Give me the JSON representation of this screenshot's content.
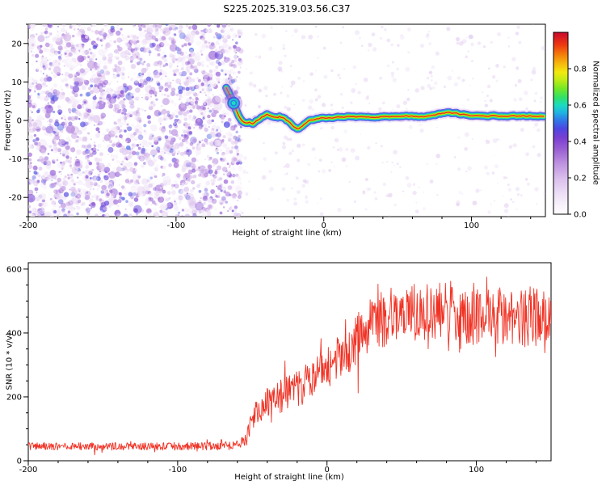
{
  "title": "S225.2025.319.03.56.C37",
  "colors": {
    "background": "#ffffff",
    "axis": "#000000",
    "tick_label": "#000000",
    "snr_line": "#f03224"
  },
  "seed": 319037,
  "colormap": [
    [
      0.0,
      "#fefdff"
    ],
    [
      0.05,
      "#f8f2fb"
    ],
    [
      0.12,
      "#ecdcf5"
    ],
    [
      0.2,
      "#d9bdec"
    ],
    [
      0.28,
      "#bd92e0"
    ],
    [
      0.35,
      "#9c63d4"
    ],
    [
      0.42,
      "#7a3fd2"
    ],
    [
      0.47,
      "#4e46e2"
    ],
    [
      0.52,
      "#2e7ce8"
    ],
    [
      0.56,
      "#1fb6e2"
    ],
    [
      0.6,
      "#1cdcc0"
    ],
    [
      0.64,
      "#2fe06a"
    ],
    [
      0.69,
      "#72e826"
    ],
    [
      0.74,
      "#c3ec14"
    ],
    [
      0.78,
      "#f2ea0e"
    ],
    [
      0.83,
      "#f6b60c"
    ],
    [
      0.88,
      "#f47a0a"
    ],
    [
      0.93,
      "#ee3a10"
    ],
    [
      1.0,
      "#c9082e"
    ]
  ],
  "chart_data": [
    {
      "type": "heatmap",
      "panel": "spectrogram",
      "title": "S225.2025.319.03.56.C37",
      "xlabel": "Height of straight line (km)",
      "ylabel": "Frequency (Hz)",
      "xlim": [
        -200,
        150
      ],
      "ylim": [
        -25,
        25
      ],
      "x_tick_values": [
        -200,
        -100,
        0,
        100
      ],
      "x_tick_labels": [
        "-200",
        "-100",
        "0",
        "100"
      ],
      "x_minor_step": 20,
      "y_tick_values": [
        -20,
        -10,
        0,
        10,
        20
      ],
      "y_tick_labels": [
        "-20",
        "-10",
        "0",
        "10",
        "20"
      ],
      "y_minor_step": 5,
      "grid": false,
      "colorbar": {
        "label": "Normalized spectral amplitude",
        "tick_values": [
          0,
          0.2,
          0.4,
          0.6,
          0.8
        ],
        "tick_labels": [
          "0.0",
          "0.2",
          "0.4",
          "0.6",
          "0.8"
        ],
        "range": [
          0,
          1
        ]
      },
      "noise_field": {
        "x_range_km": [
          -200,
          -56
        ],
        "freq_range_hz": [
          -25,
          25
        ],
        "blob_count": 2600,
        "amplitude_range": [
          0.05,
          0.5
        ]
      },
      "sparse_noise": {
        "x_range_km": [
          -56,
          150
        ],
        "blob_count": 380,
        "amplitude_range": [
          0.03,
          0.12
        ]
      },
      "signal_track_km_hz": [
        [
          -66,
          8.5
        ],
        [
          -64,
          7
        ],
        [
          -62,
          5.5
        ],
        [
          -60,
          3.5
        ],
        [
          -58,
          1.6
        ],
        [
          -56,
          0.4
        ],
        [
          -54,
          -0.4
        ],
        [
          -52,
          -0.8
        ],
        [
          -50,
          -0.5
        ],
        [
          -48,
          -0.9
        ],
        [
          -46,
          -0.3
        ],
        [
          -44,
          0.2
        ],
        [
          -42,
          0.8
        ],
        [
          -40,
          1.3
        ],
        [
          -38,
          1.6
        ],
        [
          -36,
          1.2
        ],
        [
          -34,
          0.8
        ],
        [
          -32,
          0.6
        ],
        [
          -30,
          0.9
        ],
        [
          -28,
          0.7
        ],
        [
          -26,
          0.2
        ],
        [
          -24,
          -0.3
        ],
        [
          -22,
          -0.9
        ],
        [
          -20,
          -1.6
        ],
        [
          -18,
          -2
        ],
        [
          -16,
          -1.8
        ],
        [
          -14,
          -1.2
        ],
        [
          -12,
          -0.6
        ],
        [
          -10,
          -0.2
        ],
        [
          -8,
          0.1
        ],
        [
          -6,
          0.3
        ],
        [
          -4,
          0.4
        ],
        [
          -2,
          0.5
        ],
        [
          0,
          0.5
        ],
        [
          5,
          0.6
        ],
        [
          10,
          0.8
        ],
        [
          15,
          0.9
        ],
        [
          20,
          1
        ],
        [
          25,
          0.9
        ],
        [
          30,
          0.8
        ],
        [
          35,
          0.9
        ],
        [
          40,
          1
        ],
        [
          45,
          1
        ],
        [
          50,
          1.1
        ],
        [
          55,
          1.2
        ],
        [
          60,
          1.1
        ],
        [
          65,
          1
        ],
        [
          70,
          1.2
        ],
        [
          75,
          1.5
        ],
        [
          80,
          1.8
        ],
        [
          85,
          2
        ],
        [
          90,
          1.8
        ],
        [
          95,
          1.5
        ],
        [
          100,
          1.4
        ],
        [
          105,
          1.2
        ],
        [
          110,
          1.1
        ],
        [
          115,
          1.3
        ],
        [
          120,
          1.2
        ],
        [
          125,
          1.1
        ],
        [
          130,
          1.2
        ],
        [
          135,
          1.1
        ],
        [
          140,
          1.2
        ],
        [
          145,
          1.1
        ],
        [
          150,
          1.2
        ]
      ],
      "track_peak_amplitude": 0.95,
      "emergence_blob_km_hz": [
        -61,
        4.5
      ]
    },
    {
      "type": "line",
      "panel": "snr",
      "xlabel": "Height of straight line (km)",
      "ylabel": "SNR (10 * v/v)",
      "xlim": [
        -200,
        150
      ],
      "ylim": [
        0,
        620
      ],
      "x_tick_values": [
        -200,
        -100,
        0,
        100
      ],
      "x_tick_labels": [
        "-200",
        "-100",
        "0",
        "100"
      ],
      "x_minor_step": 20,
      "y_tick_values": [
        0,
        200,
        400,
        600
      ],
      "y_tick_labels": [
        "0",
        "200",
        "400",
        "600"
      ],
      "y_minor_step": 50,
      "grid": false,
      "line_color": "#f03224",
      "sample_step_km": 0.35,
      "envelope_x_mean_amp": [
        [
          -200,
          45,
          12
        ],
        [
          -120,
          45,
          12
        ],
        [
          -70,
          46,
          13
        ],
        [
          -58,
          50,
          15
        ],
        [
          -54,
          70,
          25
        ],
        [
          -50,
          130,
          35
        ],
        [
          -46,
          160,
          40
        ],
        [
          -40,
          185,
          50
        ],
        [
          -34,
          200,
          55
        ],
        [
          -28,
          210,
          55
        ],
        [
          -22,
          225,
          55
        ],
        [
          -16,
          235,
          60
        ],
        [
          -10,
          255,
          65
        ],
        [
          -4,
          280,
          70
        ],
        [
          0,
          295,
          70
        ],
        [
          6,
          315,
          75
        ],
        [
          12,
          340,
          75
        ],
        [
          18,
          370,
          80
        ],
        [
          24,
          400,
          80
        ],
        [
          30,
          420,
          85
        ],
        [
          36,
          440,
          90
        ],
        [
          42,
          455,
          90
        ],
        [
          48,
          465,
          95
        ],
        [
          54,
          475,
          95
        ],
        [
          60,
          460,
          90
        ],
        [
          66,
          465,
          90
        ],
        [
          72,
          470,
          90
        ],
        [
          78,
          480,
          95
        ],
        [
          84,
          470,
          90
        ],
        [
          90,
          455,
          85
        ],
        [
          96,
          450,
          85
        ],
        [
          102,
          448,
          88
        ],
        [
          108,
          445,
          92
        ],
        [
          114,
          450,
          95
        ],
        [
          120,
          460,
          95
        ],
        [
          126,
          452,
          95
        ],
        [
          132,
          448,
          95
        ],
        [
          138,
          455,
          95
        ],
        [
          144,
          452,
          92
        ],
        [
          150,
          450,
          90
        ]
      ]
    }
  ]
}
